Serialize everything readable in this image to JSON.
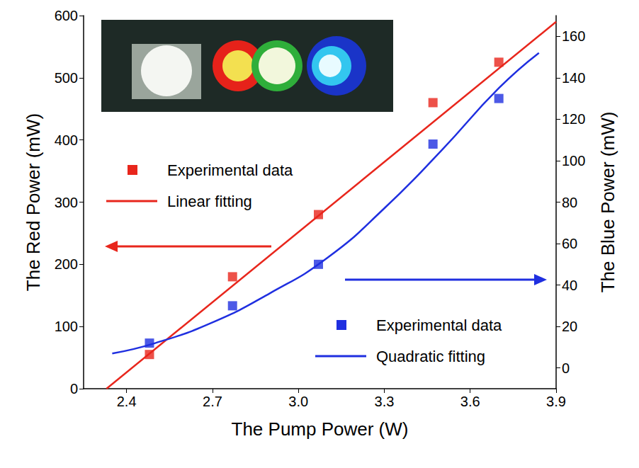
{
  "chart_data": {
    "type": "scatter",
    "x_label": "The Pump Power (W)",
    "y_label": "The Red Power (mW)",
    "y2_label": "The Blue Power (mW)",
    "xlim": [
      2.25,
      3.9
    ],
    "xticks": [
      2.4,
      2.7,
      {
        "value": 3,
        "label": "3.0"
      },
      3.3,
      3.6,
      3.9
    ],
    "ylim": [
      0,
      600
    ],
    "yticks": [
      0,
      100,
      200,
      300,
      400,
      500,
      600
    ],
    "y2lim": [
      -10,
      170
    ],
    "y2ticks": [
      0,
      20,
      40,
      60,
      80,
      100,
      120,
      140,
      160
    ],
    "grid": false,
    "legend": "left",
    "series": [
      {
        "name": "Experimental data",
        "type": "scatter",
        "marker": "square",
        "color": "#e8261c",
        "axis": "y",
        "x": [
          2.48,
          2.77,
          3.07,
          3.47,
          3.7
        ],
        "values": [
          55,
          180,
          280,
          460,
          525
        ]
      },
      {
        "name": "Linear fitting",
        "type": "line",
        "line_style": "solid",
        "color": "#e8261c",
        "axis": "y",
        "x": [
          2.33,
          3.9
        ],
        "values": [
          0,
          590
        ]
      },
      {
        "name": "Experimental data",
        "type": "scatter",
        "marker": "square",
        "color": "#1f2fe0",
        "axis": "y2",
        "x": [
          2.48,
          2.77,
          3.07,
          3.47,
          3.7
        ],
        "values": [
          12,
          30,
          50,
          108,
          130
        ]
      },
      {
        "name": "Quadratic fitting",
        "type": "line",
        "line_style": "solid",
        "color": "#1f2fe0",
        "axis": "y2",
        "x": [
          2.35,
          2.5,
          2.7,
          2.9,
          3.1,
          3.3,
          3.5,
          3.7,
          3.84
        ],
        "values": [
          7,
          12,
          22,
          36,
          53,
          77,
          105,
          135,
          152
        ]
      }
    ]
  }
}
